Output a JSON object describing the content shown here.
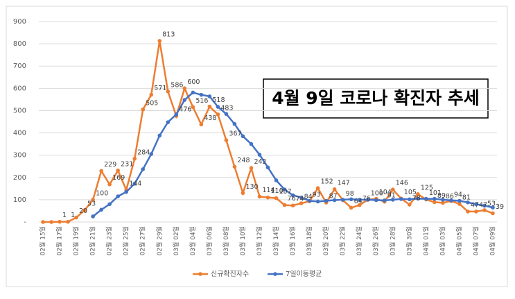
{
  "chart_data": {
    "type": "line",
    "annotation": "4월 9일 코로나 확진자 추세",
    "categories": [
      "02월 15일",
      null,
      "02월 17일",
      null,
      "02월 19일",
      null,
      "02월 21일",
      null,
      "02월 23일",
      null,
      "02월 25일",
      null,
      "02월 27일",
      null,
      "02월 29일",
      null,
      "03월 02일",
      null,
      "03월 04일",
      null,
      "03월 06일",
      null,
      "03월 08일",
      null,
      "03월 10일",
      null,
      "03월 12일",
      null,
      "03월 14일",
      null,
      "03월 16일",
      null,
      "03월 18일",
      null,
      "03월 20일",
      null,
      "03월 22일",
      null,
      "03월 24일",
      null,
      "03월 26일",
      null,
      "03월 28일",
      null,
      "03월 30일",
      null,
      "04월 01일",
      null,
      "04월 03일",
      null,
      "04월 05일",
      null,
      "04월 07일",
      null,
      "04월 09일"
    ],
    "series": [
      {
        "name": "신규확진자수",
        "color": "#ed7d31",
        "values": [
          0,
          0,
          1,
          1,
          20,
          53,
          100,
          229,
          169,
          231,
          144,
          284,
          505,
          571,
          813,
          586,
          476,
          600,
          516,
          438,
          518,
          483,
          367,
          248,
          130,
          242,
          114,
          110,
          107,
          76,
          74,
          84,
          93,
          152,
          87,
          147,
          98,
          64,
          76,
          100,
          104,
          91,
          146,
          105,
          78,
          125,
          101,
          89,
          86,
          94,
          81,
          47,
          47,
          53,
          39
        ]
      },
      {
        "name": "7일이동평균",
        "color": "#4472c4",
        "values": [
          null,
          null,
          null,
          null,
          null,
          null,
          25,
          55,
          80,
          115,
          135,
          172,
          237,
          305,
          388,
          448,
          483,
          548,
          581,
          571,
          564,
          517,
          485,
          440,
          385,
          350,
          302,
          245,
          187,
          146,
          120,
          110,
          95,
          92,
          95,
          98,
          100,
          102,
          100,
          100,
          98,
          97,
          100,
          103,
          102,
          105,
          104,
          104,
          100,
          97,
          95,
          88,
          80,
          73,
          65
        ]
      }
    ],
    "ylim": [
      0,
      900
    ],
    "yticks": [
      {
        "value": 0,
        "label": "-"
      },
      100,
      200,
      300,
      400,
      500,
      600,
      700,
      800,
      900
    ],
    "grid": true,
    "legend": "bottom"
  }
}
